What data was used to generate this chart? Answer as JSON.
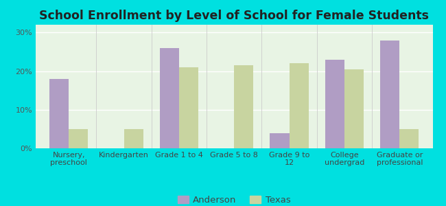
{
  "title": "School Enrollment by Level of School for Female Students",
  "categories": [
    "Nursery,\npreschool",
    "Kindergarten",
    "Grade 1 to 4",
    "Grade 5 to 8",
    "Grade 9 to\n12",
    "College\nundergrad",
    "Graduate or\nprofessional"
  ],
  "anderson": [
    18,
    0,
    26,
    0,
    4,
    23,
    28
  ],
  "texas": [
    5,
    5,
    21,
    21.5,
    22,
    20.5,
    5
  ],
  "anderson_color": "#b09dc4",
  "texas_color": "#c8d4a0",
  "background_color": "#00e0e0",
  "plot_bg": "#e8f5e8",
  "ylabel_ticks": [
    "0%",
    "10%",
    "20%",
    "30%"
  ],
  "yticks": [
    0,
    10,
    20,
    30
  ],
  "ylim": [
    0,
    32
  ],
  "bar_width": 0.35,
  "legend_labels": [
    "Anderson",
    "Texas"
  ],
  "title_fontsize": 12.5,
  "tick_fontsize": 8,
  "legend_fontsize": 9.5
}
